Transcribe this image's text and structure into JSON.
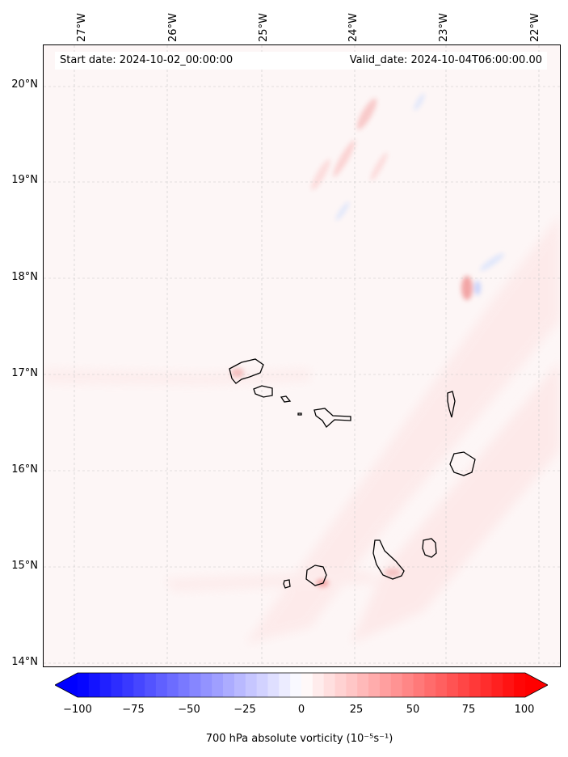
{
  "map": {
    "lon_labels": [
      "27°W",
      "26°W",
      "25°W",
      "24°W",
      "23°W",
      "22°W"
    ],
    "lat_labels": [
      "20°N",
      "19°N",
      "18°N",
      "17°N",
      "16°N",
      "15°N",
      "14°N"
    ],
    "start_date": "Start date: 2024-10-02_00:00:00",
    "valid_date": "Valid_date: 2024-10-04T06:00:00.00",
    "extent": {
      "lon": [
        -27.35,
        -21.7
      ],
      "lat": [
        13.95,
        20.4
      ]
    }
  },
  "colorbar": {
    "ticks": [
      "−100",
      "−75",
      "−50",
      "−25",
      "0",
      "25",
      "50",
      "75",
      "100"
    ],
    "range": [
      -100,
      100
    ],
    "label": "700 hPa absolute vorticity (10⁻⁵s⁻¹)",
    "colormap": "bwr"
  },
  "colors": {
    "negative": "#0000ff",
    "neutral": "#ffffff",
    "positive": "#ff0000"
  }
}
